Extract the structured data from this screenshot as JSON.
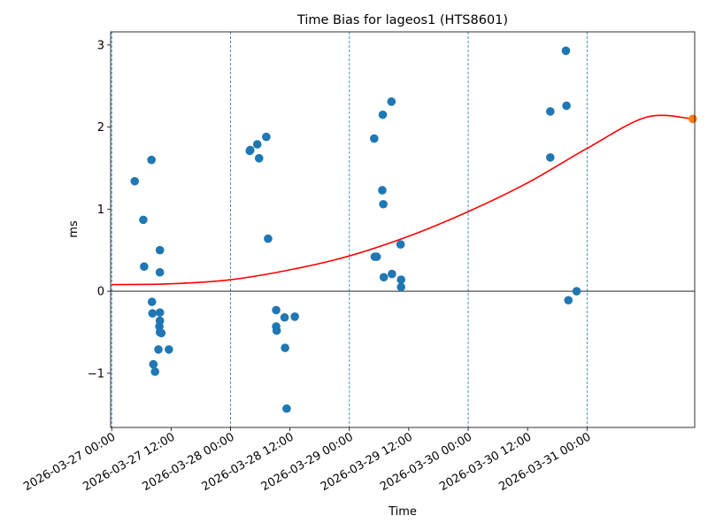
{
  "chart_data": {
    "type": "scatter",
    "title": "Time Bias for lageos1 (HTS8601)",
    "xlabel": "Time",
    "ylabel": "ms",
    "xlim": [
      "2026-03-26 23:47",
      "2026-03-31 21:45"
    ],
    "ylim": [
      -1.66,
      3.16
    ],
    "x_ticks": [
      "2026-03-27 00:00",
      "2026-03-27 12:00",
      "2026-03-28 00:00",
      "2026-03-28 12:00",
      "2026-03-29 00:00",
      "2026-03-29 12:00",
      "2026-03-30 00:00",
      "2026-03-30 12:00",
      "2026-03-31 00:00"
    ],
    "y_ticks": [
      -1,
      0,
      1,
      2,
      3
    ],
    "vertical_markers": [
      "2026-03-27 00:00",
      "2026-03-28 00:00",
      "2026-03-29 00:00",
      "2026-03-30 00:00",
      "2026-03-31 00:00"
    ],
    "zero_line": 0,
    "colors": {
      "points": "#1f77b4",
      "fit": "#ff0000",
      "forecast": "#ff7f0e",
      "markers": "#1f77b4"
    },
    "series": [
      {
        "type": "scatter",
        "points": [
          {
            "x": "2026-03-27 04:39",
            "y": 1.34
          },
          {
            "x": "2026-03-27 06:23",
            "y": 0.87
          },
          {
            "x": "2026-03-27 06:33",
            "y": 0.3
          },
          {
            "x": "2026-03-27 08:02",
            "y": 1.6
          },
          {
            "x": "2026-03-27 08:08",
            "y": -0.13
          },
          {
            "x": "2026-03-27 08:14",
            "y": -0.27
          },
          {
            "x": "2026-03-27 08:25",
            "y": -0.89
          },
          {
            "x": "2026-03-27 08:45",
            "y": -0.98
          },
          {
            "x": "2026-03-27 09:26",
            "y": -0.71
          },
          {
            "x": "2026-03-27 09:44",
            "y": 0.5
          },
          {
            "x": "2026-03-27 09:44",
            "y": 0.23
          },
          {
            "x": "2026-03-27 09:44",
            "y": -0.26
          },
          {
            "x": "2026-03-27 09:44",
            "y": -0.36
          },
          {
            "x": "2026-03-27 09:38",
            "y": -0.43
          },
          {
            "x": "2026-03-27 09:44",
            "y": -0.5
          },
          {
            "x": "2026-03-27 10:02",
            "y": -0.51
          },
          {
            "x": "2026-03-27 11:33",
            "y": -0.71
          },
          {
            "x": "2026-03-28 03:53",
            "y": 1.71
          },
          {
            "x": "2026-03-28 03:59",
            "y": 1.72
          },
          {
            "x": "2026-03-28 05:24",
            "y": 1.79
          },
          {
            "x": "2026-03-28 05:46",
            "y": 1.62
          },
          {
            "x": "2026-03-28 07:13",
            "y": 1.88
          },
          {
            "x": "2026-03-28 07:35",
            "y": 0.64
          },
          {
            "x": "2026-03-28 09:13",
            "y": -0.23
          },
          {
            "x": "2026-03-28 09:13",
            "y": -0.43
          },
          {
            "x": "2026-03-28 09:19",
            "y": -0.48
          },
          {
            "x": "2026-03-28 10:55",
            "y": -0.32
          },
          {
            "x": "2026-03-28 11:01",
            "y": -0.69
          },
          {
            "x": "2026-03-28 11:20",
            "y": -1.43
          },
          {
            "x": "2026-03-28 12:59",
            "y": -0.31
          },
          {
            "x": "2026-03-29 05:01",
            "y": 1.86
          },
          {
            "x": "2026-03-29 05:08",
            "y": 0.42
          },
          {
            "x": "2026-03-29 05:31",
            "y": 0.42
          },
          {
            "x": "2026-03-29 06:39",
            "y": 1.23
          },
          {
            "x": "2026-03-29 06:45",
            "y": 2.15
          },
          {
            "x": "2026-03-29 06:51",
            "y": 1.06
          },
          {
            "x": "2026-03-29 06:57",
            "y": 0.17
          },
          {
            "x": "2026-03-29 08:30",
            "y": 2.31
          },
          {
            "x": "2026-03-29 08:36",
            "y": 0.21
          },
          {
            "x": "2026-03-29 10:21",
            "y": 0.57
          },
          {
            "x": "2026-03-29 10:27",
            "y": 0.14
          },
          {
            "x": "2026-03-29 10:27",
            "y": 0.05
          },
          {
            "x": "2026-03-30 16:35",
            "y": 2.19
          },
          {
            "x": "2026-03-30 16:35",
            "y": 1.63
          },
          {
            "x": "2026-03-30 19:44",
            "y": 2.93
          },
          {
            "x": "2026-03-30 19:51",
            "y": 2.26
          },
          {
            "x": "2026-03-30 20:14",
            "y": -0.11
          },
          {
            "x": "2026-03-30 21:54",
            "y": 0.0
          }
        ]
      },
      {
        "type": "line",
        "x": [
          "2026-03-27 00:00",
          "2026-03-27 12:00",
          "2026-03-28 00:00",
          "2026-03-28 12:00",
          "2026-03-29 00:00",
          "2026-03-29 12:00",
          "2026-03-30 00:00",
          "2026-03-30 12:00",
          "2026-03-31 00:00",
          "2026-03-31 12:00",
          "2026-03-31 21:21"
        ],
        "y": [
          0.08,
          0.09,
          0.14,
          0.26,
          0.43,
          0.67,
          0.97,
          1.32,
          1.74,
          2.12,
          2.1
        ]
      },
      {
        "type": "scatter",
        "points": [
          {
            "x": "2026-03-31 21:21",
            "y": 2.1
          }
        ]
      }
    ]
  }
}
